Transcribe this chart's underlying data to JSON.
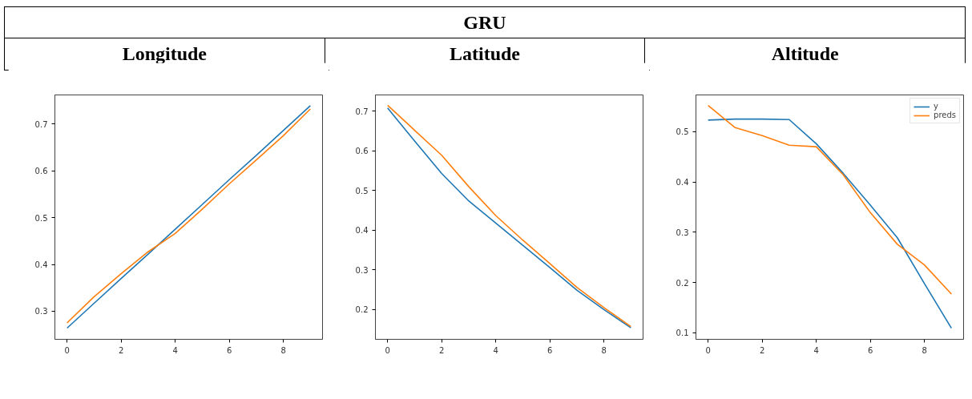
{
  "chart_data": [
    {
      "type": "other",
      "title": "GRU"
    },
    {
      "type": "line",
      "title": "Longitude",
      "x": [
        0,
        1,
        2,
        3,
        4,
        5,
        6,
        7,
        8,
        9
      ],
      "xlim": [
        -0.45,
        9.45
      ],
      "xticks": [
        0,
        2,
        4,
        6,
        8
      ],
      "ylim": [
        0.24,
        0.762
      ],
      "yticks": [
        0.3,
        0.4,
        0.5,
        0.6,
        0.7
      ],
      "grid": false,
      "legend": false,
      "series": [
        {
          "color": "#1f77b4",
          "values": [
            0.264,
            0.317,
            0.37,
            0.422,
            0.475,
            0.528,
            0.581,
            0.633,
            0.686,
            0.739
          ]
        },
        {
          "color": "#ff7f0e",
          "values": [
            0.275,
            0.331,
            0.38,
            0.427,
            0.466,
            0.518,
            0.572,
            0.623,
            0.675,
            0.732
          ]
        }
      ]
    },
    {
      "type": "line",
      "title": "Latitude",
      "x": [
        0,
        1,
        2,
        3,
        4,
        5,
        6,
        7,
        8,
        9
      ],
      "xlim": [
        -0.45,
        9.45
      ],
      "xticks": [
        0,
        2,
        4,
        6,
        8
      ],
      "ylim": [
        0.125,
        0.741
      ],
      "yticks": [
        0.2,
        0.3,
        0.4,
        0.5,
        0.6,
        0.7
      ],
      "grid": false,
      "legend": false,
      "series": [
        {
          "color": "#1f77b4",
          "values": [
            0.708,
            0.625,
            0.543,
            0.474,
            0.418,
            0.362,
            0.306,
            0.249,
            0.2,
            0.154
          ]
        },
        {
          "color": "#ff7f0e",
          "values": [
            0.715,
            0.652,
            0.589,
            0.51,
            0.437,
            0.375,
            0.316,
            0.256,
            0.205,
            0.157
          ]
        }
      ]
    },
    {
      "type": "line",
      "title": "Altitude",
      "x": [
        0,
        1,
        2,
        3,
        4,
        5,
        6,
        7,
        8,
        9
      ],
      "xlim": [
        -0.45,
        9.45
      ],
      "xticks": [
        0,
        2,
        4,
        6,
        8
      ],
      "ylim": [
        0.087,
        0.573
      ],
      "yticks": [
        0.1,
        0.2,
        0.3,
        0.4,
        0.5
      ],
      "grid": false,
      "legend": "top right",
      "series": [
        {
          "name": "y",
          "color": "#1f77b4",
          "values": [
            0.523,
            0.525,
            0.525,
            0.524,
            0.476,
            0.417,
            0.354,
            0.289,
            0.198,
            0.109
          ]
        },
        {
          "name": "preds",
          "color": "#ff7f0e",
          "values": [
            0.552,
            0.508,
            0.492,
            0.473,
            0.47,
            0.414,
            0.339,
            0.276,
            0.235,
            0.177
          ]
        }
      ]
    }
  ]
}
